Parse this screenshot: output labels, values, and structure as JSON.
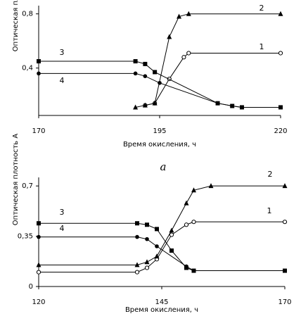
{
  "chart_data": [
    {
      "type": "line",
      "xlabel": "Время окисления, ч",
      "ylabel": "Оптическая плотность А",
      "xlim": [
        170,
        220
      ],
      "xticks": [
        170,
        195,
        220
      ],
      "ylim": [
        0.05,
        0.84
      ],
      "yticks": [
        {
          "value": 0.4,
          "label": "0,4"
        },
        {
          "value": 0.8,
          "label": "0,8"
        }
      ],
      "series": [
        {
          "name": "1",
          "color": "#000",
          "marker": "circle-open",
          "x": [
            192,
            194,
            197,
            200,
            201,
            220
          ],
          "values": [
            0.125,
            0.14,
            0.32,
            0.48,
            0.51,
            0.51
          ]
        },
        {
          "name": "2",
          "color": "#000",
          "marker": "triangle",
          "x": [
            190,
            192,
            194,
            197,
            199,
            201,
            220
          ],
          "values": [
            0.11,
            0.125,
            0.14,
            0.63,
            0.78,
            0.8,
            0.8
          ]
        },
        {
          "name": "3",
          "color": "#000",
          "marker": "square",
          "x": [
            170,
            190,
            192,
            194,
            207,
            210,
            212,
            220
          ],
          "values": [
            0.45,
            0.45,
            0.43,
            0.37,
            0.14,
            0.12,
            0.11,
            0.11
          ]
        },
        {
          "name": "4",
          "color": "#000",
          "marker": "circle",
          "x": [
            170,
            190,
            192,
            195,
            207,
            210,
            212
          ],
          "values": [
            0.36,
            0.36,
            0.34,
            0.29,
            0.14,
            0.12,
            0.11
          ]
        }
      ]
    },
    {
      "type": "line",
      "xlabel": "Время окисления, ч",
      "ylabel": "Оптическая плотность А",
      "xlim": [
        120,
        170
      ],
      "xticks": [
        120,
        145,
        170
      ],
      "ylim": [
        0,
        0.74
      ],
      "yticks": [
        0,
        {
          "value": 0.35,
          "label": "0,35"
        },
        {
          "value": 0.7,
          "label": "0,7"
        }
      ],
      "series": [
        {
          "name": "1",
          "color": "#000",
          "marker": "circle-open",
          "x": [
            120,
            140,
            142,
            144,
            147,
            150,
            151.5,
            170
          ],
          "values": [
            0.1,
            0.1,
            0.13,
            0.19,
            0.36,
            0.43,
            0.45,
            0.45
          ]
        },
        {
          "name": "2",
          "color": "#000",
          "marker": "triangle",
          "x": [
            120,
            140,
            142,
            144,
            147,
            150,
            151.5,
            155,
            170
          ],
          "values": [
            0.15,
            0.15,
            0.17,
            0.21,
            0.39,
            0.58,
            0.67,
            0.7,
            0.7
          ]
        },
        {
          "name": "3",
          "color": "#000",
          "marker": "square",
          "x": [
            120,
            140,
            142,
            144,
            147,
            150,
            151.5,
            170
          ],
          "values": [
            0.44,
            0.44,
            0.43,
            0.4,
            0.25,
            0.13,
            0.11,
            0.11
          ]
        },
        {
          "name": "4",
          "color": "#000",
          "marker": "circle",
          "x": [
            120,
            140,
            142,
            144,
            150,
            151.5,
            170
          ],
          "values": [
            0.345,
            0.345,
            0.33,
            0.28,
            0.14,
            0.11,
            0.11
          ]
        }
      ]
    }
  ],
  "caption": "а"
}
